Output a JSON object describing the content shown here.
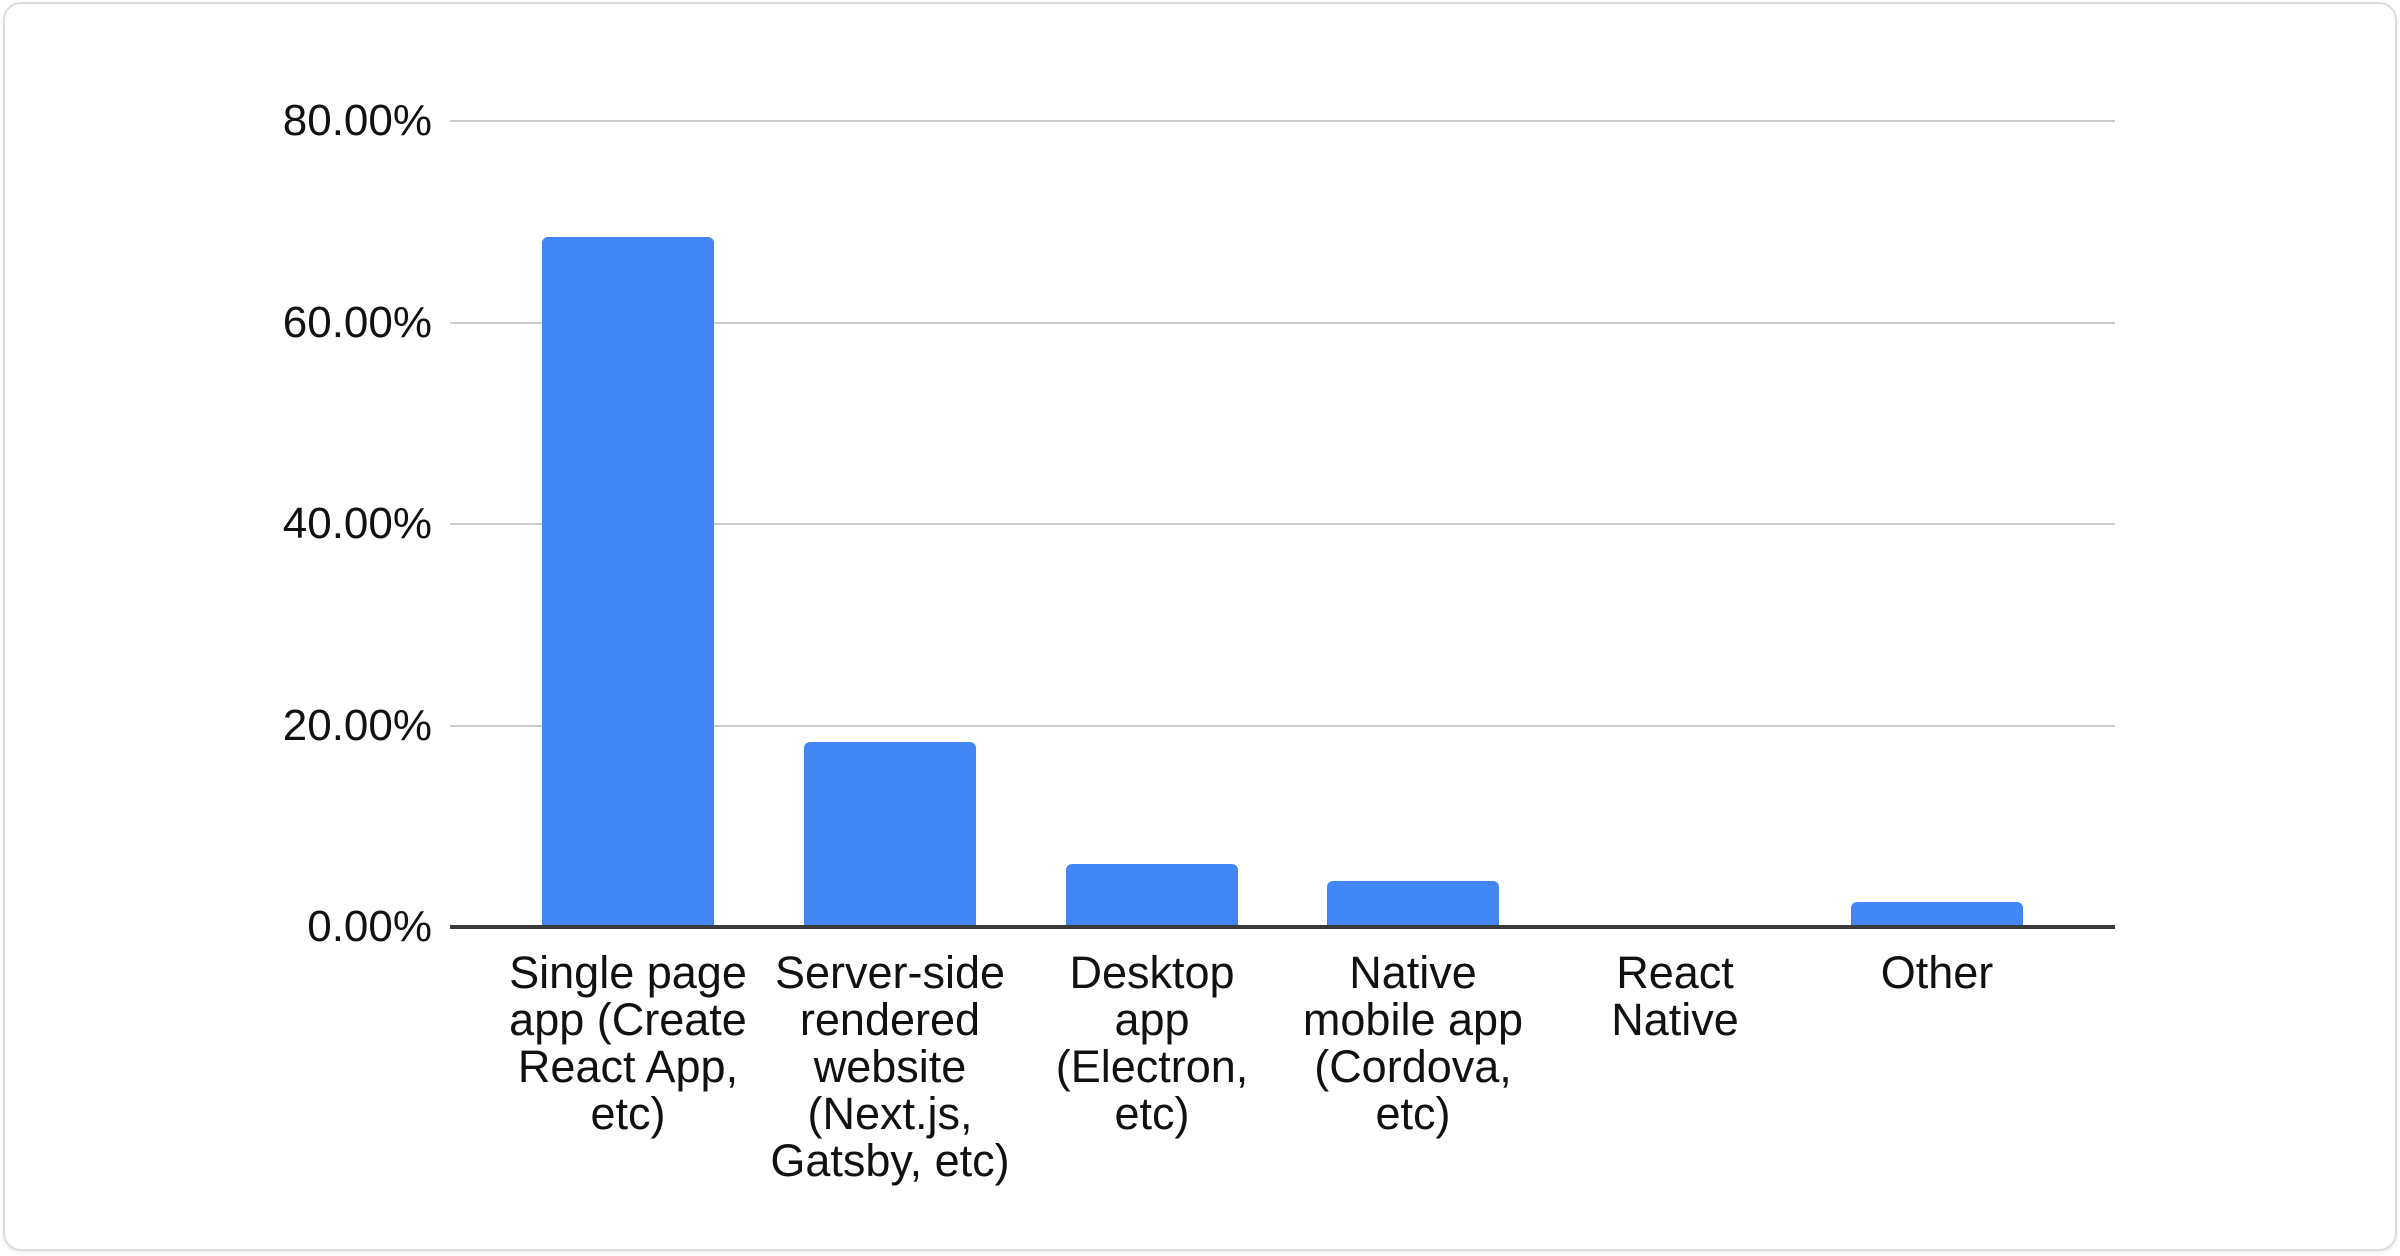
{
  "card": {
    "background": "#ffffff",
    "border_color": "#d9dce0"
  },
  "chart_data": {
    "type": "bar",
    "title": "",
    "legend": "none",
    "grid": true,
    "bar_color": "#4285f4",
    "axis_color": "#3b3b3b",
    "gridline_color": "#cccccc",
    "label_color": "#111111",
    "ylabel": "",
    "xlabel": "",
    "ylim": [
      0,
      80
    ],
    "ytick_step": 20,
    "yticks": [
      {
        "label": "80.00%",
        "value": 80
      },
      {
        "label": "60.00%",
        "value": 60
      },
      {
        "label": "40.00%",
        "value": 40
      },
      {
        "label": "20.00%",
        "value": 20
      },
      {
        "label": "0.00%",
        "value": 0
      }
    ],
    "categories": [
      {
        "id": "single-page-app",
        "label": "Single page\napp (Create\nReact App,\netc)",
        "value": 68.5
      },
      {
        "id": "server-side-rendered-website",
        "label": "Server-side\nrendered\nwebsite\n(Next.js,\nGatsby, etc)",
        "value": 18.4
      },
      {
        "id": "desktop-app",
        "label": "Desktop\napp\n(Electron,\netc)",
        "value": 6.3
      },
      {
        "id": "native-mobile-app",
        "label": "Native\nmobile app\n(Cordova,\netc)",
        "value": 4.6
      },
      {
        "id": "react-native",
        "label": "React\nNative",
        "value": 0
      },
      {
        "id": "other",
        "label": "Other",
        "value": 2.5
      }
    ]
  }
}
